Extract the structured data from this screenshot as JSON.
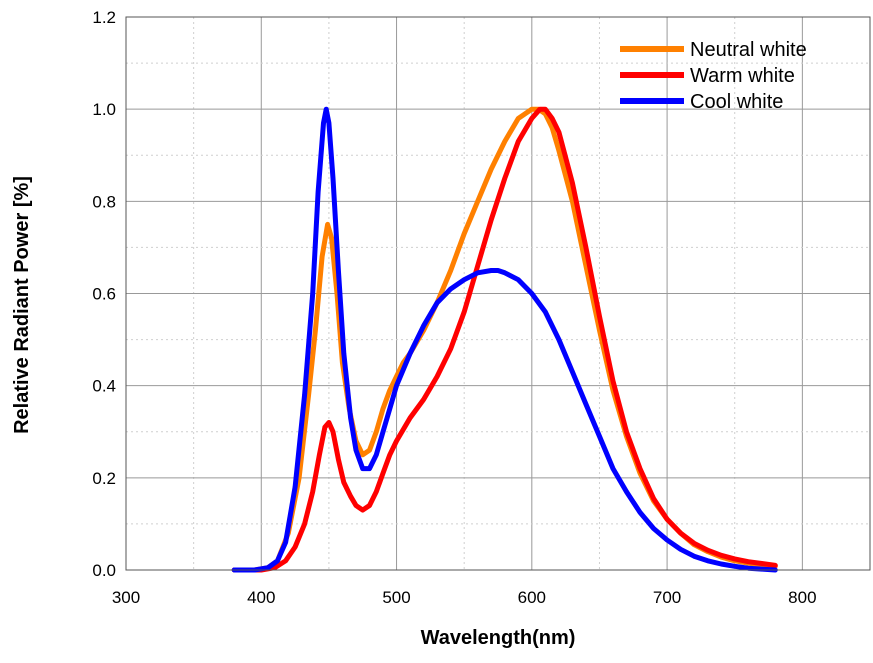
{
  "chart_data": {
    "type": "line",
    "xlabel": "Wavelength(nm)",
    "ylabel": "Relative Radiant Power [%]",
    "xlim": [
      300,
      850
    ],
    "ylim": [
      0,
      1.2
    ],
    "xticks": [
      300,
      400,
      500,
      600,
      700,
      800
    ],
    "yticks": [
      0,
      0.2,
      0.4,
      0.6,
      0.8,
      1.0,
      1.2
    ],
    "xtick_labels": [
      "300",
      "400",
      "500",
      "600",
      "700",
      "800"
    ],
    "ytick_labels": [
      "0.0",
      "0.2",
      "0.4",
      "0.6",
      "0.8",
      "1.0",
      "1.2"
    ],
    "grid": true,
    "legend_position": "top-right",
    "series": [
      {
        "name": "Neutral white",
        "color": "#FF8000",
        "points": [
          [
            380,
            0
          ],
          [
            395,
            0
          ],
          [
            405,
            0.005
          ],
          [
            412,
            0.02
          ],
          [
            420,
            0.08
          ],
          [
            428,
            0.2
          ],
          [
            435,
            0.38
          ],
          [
            440,
            0.52
          ],
          [
            445,
            0.68
          ],
          [
            449,
            0.75
          ],
          [
            452,
            0.72
          ],
          [
            456,
            0.6
          ],
          [
            460,
            0.45
          ],
          [
            465,
            0.35
          ],
          [
            470,
            0.28
          ],
          [
            475,
            0.25
          ],
          [
            480,
            0.26
          ],
          [
            485,
            0.3
          ],
          [
            490,
            0.35
          ],
          [
            495,
            0.39
          ],
          [
            500,
            0.42
          ],
          [
            505,
            0.45
          ],
          [
            510,
            0.47
          ],
          [
            520,
            0.52
          ],
          [
            530,
            0.58
          ],
          [
            540,
            0.65
          ],
          [
            550,
            0.73
          ],
          [
            560,
            0.8
          ],
          [
            570,
            0.87
          ],
          [
            580,
            0.93
          ],
          [
            590,
            0.98
          ],
          [
            600,
            1.0
          ],
          [
            605,
            1.0
          ],
          [
            610,
            0.99
          ],
          [
            615,
            0.96
          ],
          [
            620,
            0.91
          ],
          [
            630,
            0.8
          ],
          [
            640,
            0.66
          ],
          [
            650,
            0.52
          ],
          [
            660,
            0.39
          ],
          [
            670,
            0.29
          ],
          [
            680,
            0.21
          ],
          [
            690,
            0.15
          ],
          [
            700,
            0.11
          ],
          [
            710,
            0.08
          ],
          [
            720,
            0.055
          ],
          [
            730,
            0.04
          ],
          [
            740,
            0.028
          ],
          [
            750,
            0.02
          ],
          [
            760,
            0.015
          ],
          [
            770,
            0.011
          ],
          [
            780,
            0.008
          ]
        ]
      },
      {
        "name": "Warm white",
        "color": "#FF0000",
        "points": [
          [
            380,
            0
          ],
          [
            400,
            0
          ],
          [
            410,
            0.005
          ],
          [
            418,
            0.02
          ],
          [
            425,
            0.05
          ],
          [
            432,
            0.1
          ],
          [
            438,
            0.17
          ],
          [
            443,
            0.25
          ],
          [
            447,
            0.31
          ],
          [
            450,
            0.32
          ],
          [
            453,
            0.3
          ],
          [
            457,
            0.24
          ],
          [
            461,
            0.19
          ],
          [
            466,
            0.16
          ],
          [
            470,
            0.14
          ],
          [
            475,
            0.13
          ],
          [
            480,
            0.14
          ],
          [
            485,
            0.17
          ],
          [
            490,
            0.21
          ],
          [
            495,
            0.25
          ],
          [
            500,
            0.28
          ],
          [
            510,
            0.33
          ],
          [
            520,
            0.37
          ],
          [
            530,
            0.42
          ],
          [
            540,
            0.48
          ],
          [
            550,
            0.56
          ],
          [
            560,
            0.66
          ],
          [
            570,
            0.76
          ],
          [
            580,
            0.85
          ],
          [
            590,
            0.93
          ],
          [
            600,
            0.98
          ],
          [
            606,
            1.0
          ],
          [
            610,
            1.0
          ],
          [
            615,
            0.98
          ],
          [
            620,
            0.95
          ],
          [
            630,
            0.84
          ],
          [
            640,
            0.7
          ],
          [
            650,
            0.55
          ],
          [
            660,
            0.41
          ],
          [
            670,
            0.3
          ],
          [
            680,
            0.22
          ],
          [
            690,
            0.155
          ],
          [
            700,
            0.11
          ],
          [
            710,
            0.08
          ],
          [
            720,
            0.058
          ],
          [
            730,
            0.043
          ],
          [
            740,
            0.032
          ],
          [
            750,
            0.024
          ],
          [
            760,
            0.018
          ],
          [
            770,
            0.014
          ],
          [
            780,
            0.01
          ]
        ]
      },
      {
        "name": "Cool white",
        "color": "#0000FF",
        "points": [
          [
            380,
            0
          ],
          [
            395,
            0
          ],
          [
            405,
            0.005
          ],
          [
            412,
            0.02
          ],
          [
            418,
            0.06
          ],
          [
            425,
            0.18
          ],
          [
            432,
            0.38
          ],
          [
            438,
            0.6
          ],
          [
            442,
            0.82
          ],
          [
            446,
            0.97
          ],
          [
            448,
            1.0
          ],
          [
            450,
            0.97
          ],
          [
            453,
            0.85
          ],
          [
            457,
            0.65
          ],
          [
            461,
            0.47
          ],
          [
            466,
            0.33
          ],
          [
            470,
            0.26
          ],
          [
            475,
            0.22
          ],
          [
            480,
            0.22
          ],
          [
            485,
            0.25
          ],
          [
            490,
            0.3
          ],
          [
            495,
            0.35
          ],
          [
            500,
            0.4
          ],
          [
            510,
            0.47
          ],
          [
            520,
            0.53
          ],
          [
            530,
            0.58
          ],
          [
            540,
            0.61
          ],
          [
            550,
            0.63
          ],
          [
            560,
            0.645
          ],
          [
            570,
            0.65
          ],
          [
            575,
            0.65
          ],
          [
            580,
            0.645
          ],
          [
            590,
            0.63
          ],
          [
            600,
            0.6
          ],
          [
            610,
            0.56
          ],
          [
            620,
            0.5
          ],
          [
            630,
            0.43
          ],
          [
            640,
            0.36
          ],
          [
            650,
            0.29
          ],
          [
            660,
            0.22
          ],
          [
            670,
            0.17
          ],
          [
            680,
            0.125
          ],
          [
            690,
            0.09
          ],
          [
            700,
            0.065
          ],
          [
            710,
            0.045
          ],
          [
            720,
            0.03
          ],
          [
            730,
            0.02
          ],
          [
            740,
            0.013
          ],
          [
            750,
            0.008
          ],
          [
            760,
            0.004
          ],
          [
            770,
            0.002
          ],
          [
            780,
            0
          ]
        ]
      }
    ]
  }
}
